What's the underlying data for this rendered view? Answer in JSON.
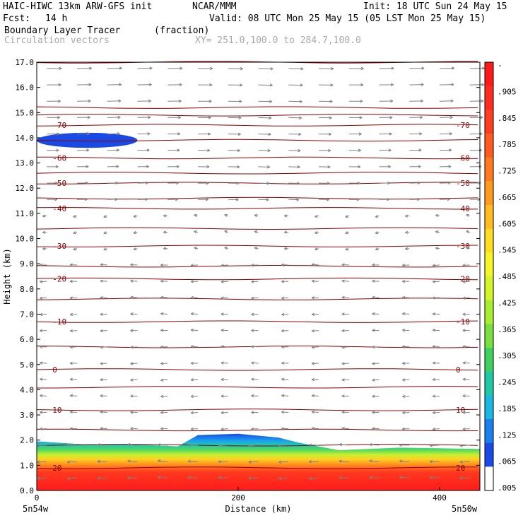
{
  "header": {
    "title": "HAIC-HIWC 13km ARW-GFS init",
    "org": "NCAR/MMM",
    "init": "Init: 18 UTC Sun 24 May 15",
    "fcst_label": "Fcst:",
    "fcst_value": "14 h",
    "valid": "Valid: 08 UTC Mon 25 May 15 (05 LST Mon 25 May 15)",
    "field": "Boundary Layer Tracer",
    "field_units": "(fraction)",
    "overlay": "Circulation vectors",
    "xy": "XY= 251.0,100.0 to 284.7,100.0"
  },
  "chart_data": {
    "type": "heatmap",
    "title": "Boundary Layer Tracer",
    "xlabel": "Distance (km)",
    "ylabel": "Height (km)",
    "xlim": [
      0,
      440
    ],
    "ylim": [
      0,
      17
    ],
    "x_ticks": [
      "0",
      "200",
      "400"
    ],
    "x_tick_values": [
      0,
      200,
      400
    ],
    "x_endpoints": [
      "5n54w",
      "5n50w"
    ],
    "y_ticks": [
      "0.0",
      "1.0",
      "2.0",
      "3.0",
      "4.0",
      "5.0",
      "6.0",
      "7.0",
      "8.0",
      "9.0",
      "10.0",
      "11.0",
      "12.0",
      "13.0",
      "14.0",
      "15.0",
      "16.0",
      "17.0"
    ],
    "colorbar": {
      "labels": [
        "-",
        ".905",
        ".845",
        ".785",
        ".725",
        ".665",
        ".605",
        ".545",
        ".485",
        ".425",
        ".365",
        ".305",
        ".245",
        ".185",
        ".125",
        ".065",
        ".005"
      ],
      "colors": [
        "#ff1a1a",
        "#ff2b1f",
        "#ff3d1f",
        "#ff5a1f",
        "#ff7a1f",
        "#ff9a1f",
        "#ffbb1f",
        "#ffdd22",
        "#f5f52a",
        "#d4f52a",
        "#a8ee30",
        "#78e040",
        "#40d060",
        "#20c8a8",
        "#1ab8e0",
        "#1a80f0",
        "#1a4ae6",
        "#ffffff"
      ]
    },
    "tracer_top_km": [
      {
        "x": 0,
        "top": 1.95
      },
      {
        "x": 60,
        "top": 1.8
      },
      {
        "x": 90,
        "top": 1.85
      },
      {
        "x": 140,
        "top": 1.75
      },
      {
        "x": 160,
        "top": 2.2
      },
      {
        "x": 200,
        "top": 2.25
      },
      {
        "x": 240,
        "top": 2.1
      },
      {
        "x": 260,
        "top": 1.9
      },
      {
        "x": 300,
        "top": 1.6
      },
      {
        "x": 360,
        "top": 1.7
      },
      {
        "x": 440,
        "top": 1.65
      }
    ],
    "upper_tracer_patch": {
      "x_range": [
        0,
        100
      ],
      "height_km": [
        13.6,
        14.2
      ]
    },
    "temperature_contours": [
      {
        "label": "20",
        "height_km": 0.9
      },
      {
        "label": "10",
        "height_km": 3.2
      },
      {
        "label": "0",
        "height_km": 4.8
      },
      {
        "label": "-10",
        "height_km": 6.7
      },
      {
        "label": "-20",
        "height_km": 8.4
      },
      {
        "label": "-30",
        "height_km": 9.7
      },
      {
        "label": "-40",
        "height_km": 11.2
      },
      {
        "label": "-50",
        "height_km": 12.2
      },
      {
        "label": "-60",
        "height_km": 13.2
      },
      {
        "label": "-70",
        "height_km": 14.5
      }
    ],
    "contour_levels_km": [
      0.9,
      1.8,
      2.4,
      3.2,
      4.1,
      4.8,
      5.7,
      6.7,
      7.6,
      8.4,
      8.9,
      9.7,
      10.4,
      11.2,
      11.6,
      12.2,
      12.6,
      13.2,
      13.9,
      14.5,
      14.9,
      15.2,
      17.0
    ],
    "vector_field": {
      "upper": "westerly (rightward) above ~11 km",
      "lower": "easterly (leftward) below ~10 km"
    }
  }
}
